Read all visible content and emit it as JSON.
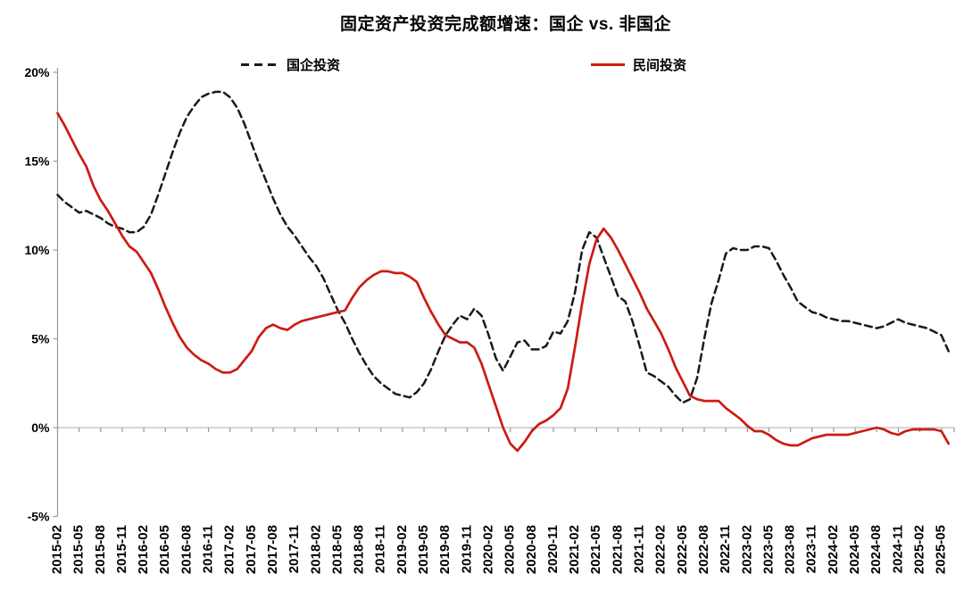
{
  "chart_data": {
    "type": "line",
    "title": "固定资产投资完成额增速：国企 vs. 非国企",
    "x_start": "2015-02",
    "x_end": "2025-06",
    "x_freq": "monthly",
    "n_points": 125,
    "ylim": [
      -5,
      20
    ],
    "y_tick_values": [
      20,
      15,
      10,
      5,
      0,
      -5
    ],
    "y_tick_labels": [
      "20%",
      "15%",
      "10%",
      "5%",
      "0%",
      "-5%"
    ],
    "grid": "zero-line-only",
    "legend_position": "top",
    "x_tick_labels": [
      "2015-02",
      "2015-05",
      "2015-08",
      "2015-11",
      "2016-02",
      "2016-05",
      "2016-08",
      "2016-11",
      "2017-02",
      "2017-05",
      "2017-08",
      "2017-11",
      "2018-02",
      "2018-05",
      "2018-08",
      "2018-11",
      "2019-02",
      "2019-05",
      "2019-08",
      "2019-11",
      "2020-02",
      "2020-05",
      "2020-08",
      "2020-11",
      "2021-02",
      "2021-05",
      "2021-08",
      "2021-11",
      "2022-02",
      "2022-05",
      "2022-08",
      "2022-11",
      "2023-02",
      "2023-05",
      "2023-08",
      "2023-11",
      "2024-02",
      "2024-05",
      "2024-08",
      "2024-11",
      "2025-02",
      "2025-05"
    ],
    "series": [
      {
        "name": "国企投资",
        "color": "#1a1a1a",
        "style": "dashed",
        "values": [
          13.1,
          12.7,
          12.4,
          12.1,
          12.2,
          12.0,
          11.8,
          11.5,
          11.3,
          11.2,
          11.0,
          11.0,
          11.3,
          12.0,
          13.1,
          14.3,
          15.5,
          16.6,
          17.5,
          18.1,
          18.6,
          18.8,
          18.9,
          18.9,
          18.6,
          18.0,
          17.1,
          16.0,
          14.9,
          13.9,
          12.9,
          12.0,
          11.3,
          10.8,
          10.2,
          9.6,
          9.1,
          8.4,
          7.5,
          6.6,
          5.9,
          5.0,
          4.2,
          3.5,
          2.9,
          2.5,
          2.2,
          1.9,
          1.8,
          1.7,
          2.0,
          2.5,
          3.3,
          4.3,
          5.2,
          5.8,
          6.3,
          6.1,
          6.7,
          6.3,
          5.2,
          3.9,
          3.2,
          4.0,
          4.8,
          4.9,
          4.4,
          4.4,
          4.6,
          5.4,
          5.3,
          6.0,
          7.6,
          10.0,
          11.0,
          10.7,
          9.6,
          8.5,
          7.4,
          7.1,
          6.0,
          4.6,
          3.1,
          2.9,
          2.6,
          2.3,
          1.8,
          1.4,
          1.6,
          2.8,
          5.0,
          7.0,
          8.3,
          9.8,
          10.1,
          10.0,
          10.0,
          10.2,
          10.2,
          10.1,
          9.4,
          8.6,
          7.9,
          7.1,
          6.8,
          6.5,
          6.4,
          6.2,
          6.1,
          6.0,
          6.0,
          5.9,
          5.8,
          5.7,
          5.6,
          5.7,
          5.9,
          6.1,
          5.9,
          5.8,
          5.7,
          5.6,
          5.4,
          5.2,
          4.3
        ]
      },
      {
        "name": "民间投资",
        "color": "#cc1b14",
        "style": "solid",
        "values": [
          17.7,
          17.0,
          16.2,
          15.4,
          14.7,
          13.6,
          12.8,
          12.2,
          11.5,
          10.8,
          10.2,
          9.9,
          9.3,
          8.7,
          7.8,
          6.8,
          5.9,
          5.1,
          4.5,
          4.1,
          3.8,
          3.6,
          3.3,
          3.1,
          3.1,
          3.3,
          3.8,
          4.3,
          5.1,
          5.6,
          5.8,
          5.6,
          5.5,
          5.8,
          6.0,
          6.1,
          6.2,
          6.3,
          6.4,
          6.5,
          6.6,
          7.3,
          7.9,
          8.3,
          8.6,
          8.8,
          8.8,
          8.7,
          8.7,
          8.5,
          8.2,
          7.3,
          6.5,
          5.8,
          5.2,
          5.0,
          4.8,
          4.8,
          4.5,
          3.6,
          2.4,
          1.2,
          0.0,
          -0.9,
          -1.3,
          -0.8,
          -0.2,
          0.2,
          0.4,
          0.7,
          1.1,
          2.2,
          4.5,
          7.0,
          9.2,
          10.6,
          11.2,
          10.7,
          10.0,
          9.2,
          8.4,
          7.6,
          6.7,
          6.0,
          5.3,
          4.4,
          3.4,
          2.6,
          1.8,
          1.6,
          1.5,
          1.5,
          1.5,
          1.1,
          0.8,
          0.5,
          0.1,
          -0.2,
          -0.2,
          -0.4,
          -0.7,
          -0.9,
          -1.0,
          -1.0,
          -0.8,
          -0.6,
          -0.5,
          -0.4,
          -0.4,
          -0.4,
          -0.4,
          -0.3,
          -0.2,
          -0.1,
          0.0,
          -0.1,
          -0.3,
          -0.4,
          -0.2,
          -0.1,
          -0.1,
          -0.1,
          -0.1,
          -0.2,
          -0.9
        ]
      }
    ],
    "colors": {
      "soe_line": "#1a1a1a",
      "private_line": "#cc1b14",
      "axis": "#9a9a9a",
      "zero_line": "#bdbdbd",
      "text": "#000000",
      "background": "#ffffff"
    }
  }
}
